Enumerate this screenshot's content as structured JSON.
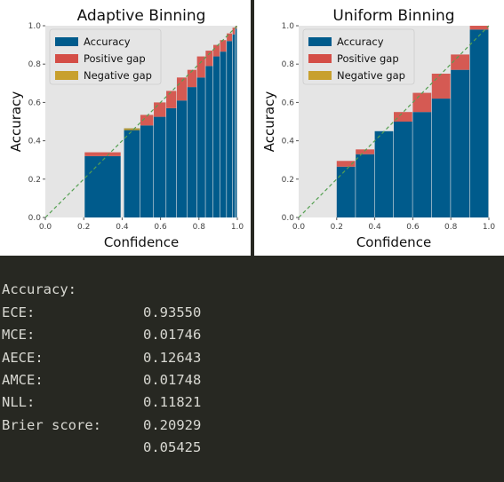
{
  "chart_data": [
    {
      "type": "bar",
      "title": "Adaptive Binning",
      "xlabel": "Confidence",
      "ylabel": "Accuracy",
      "xlim": [
        0,
        1
      ],
      "ylim": [
        0,
        1
      ],
      "xticks": [
        "0.0",
        "0.2",
        "0.4",
        "0.6",
        "0.8",
        "1.0"
      ],
      "yticks": [
        "0.0",
        "0.2",
        "0.4",
        "0.6",
        "0.8",
        "1.0"
      ],
      "grid": false,
      "diagonal_reference": true,
      "legend": {
        "position": "top-left",
        "entries": [
          "Accuracy",
          "Positive gap",
          "Negative gap"
        ]
      },
      "bins": [
        {
          "x0": 0.205,
          "x1": 0.395,
          "accuracy": 0.32,
          "confidence": 0.34
        },
        {
          "x0": 0.41,
          "x1": 0.495,
          "accuracy": 0.465,
          "confidence": 0.455
        },
        {
          "x0": 0.495,
          "x1": 0.565,
          "accuracy": 0.48,
          "confidence": 0.535
        },
        {
          "x0": 0.565,
          "x1": 0.63,
          "accuracy": 0.525,
          "confidence": 0.6
        },
        {
          "x0": 0.63,
          "x1": 0.685,
          "accuracy": 0.57,
          "confidence": 0.66
        },
        {
          "x0": 0.685,
          "x1": 0.74,
          "accuracy": 0.61,
          "confidence": 0.73
        },
        {
          "x0": 0.74,
          "x1": 0.79,
          "accuracy": 0.68,
          "confidence": 0.77
        },
        {
          "x0": 0.79,
          "x1": 0.835,
          "accuracy": 0.73,
          "confidence": 0.84
        },
        {
          "x0": 0.835,
          "x1": 0.875,
          "accuracy": 0.79,
          "confidence": 0.87
        },
        {
          "x0": 0.875,
          "x1": 0.91,
          "accuracy": 0.84,
          "confidence": 0.9
        },
        {
          "x0": 0.91,
          "x1": 0.945,
          "accuracy": 0.865,
          "confidence": 0.925
        },
        {
          "x0": 0.945,
          "x1": 0.975,
          "accuracy": 0.92,
          "confidence": 0.96
        },
        {
          "x0": 0.975,
          "x1": 0.99,
          "accuracy": 0.955,
          "confidence": 0.99
        },
        {
          "x0": 0.99,
          "x1": 1.0,
          "accuracy": 0.985,
          "confidence": 1.0
        }
      ]
    },
    {
      "type": "bar",
      "title": "Uniform Binning",
      "xlabel": "Confidence",
      "ylabel": "Accuracy",
      "xlim": [
        0,
        1
      ],
      "ylim": [
        0,
        1
      ],
      "xticks": [
        "0.0",
        "0.2",
        "0.4",
        "0.6",
        "0.8",
        "1.0"
      ],
      "yticks": [
        "0.0",
        "0.2",
        "0.4",
        "0.6",
        "0.8",
        "1.0"
      ],
      "grid": false,
      "diagonal_reference": true,
      "legend": {
        "position": "top-left",
        "entries": [
          "Accuracy",
          "Positive gap",
          "Negative gap"
        ]
      },
      "bins": [
        {
          "x0": 0.2,
          "x1": 0.3,
          "accuracy": 0.265,
          "confidence": 0.295
        },
        {
          "x0": 0.3,
          "x1": 0.4,
          "accuracy": 0.33,
          "confidence": 0.355
        },
        {
          "x0": 0.4,
          "x1": 0.5,
          "accuracy": 0.45,
          "confidence": 0.45
        },
        {
          "x0": 0.5,
          "x1": 0.6,
          "accuracy": 0.5,
          "confidence": 0.55
        },
        {
          "x0": 0.6,
          "x1": 0.7,
          "accuracy": 0.55,
          "confidence": 0.65
        },
        {
          "x0": 0.7,
          "x1": 0.8,
          "accuracy": 0.62,
          "confidence": 0.75
        },
        {
          "x0": 0.8,
          "x1": 0.9,
          "accuracy": 0.77,
          "confidence": 0.85
        },
        {
          "x0": 0.9,
          "x1": 1.0,
          "accuracy": 0.98,
          "confidence": 1.0
        }
      ]
    }
  ],
  "colors": {
    "accuracy": "#005b8c",
    "positive_gap": "#d44e47",
    "negative_gap": "#c8a02e",
    "diagonal": "#55a052",
    "plot_background": "#e5e5e5"
  },
  "metrics": [
    {
      "label": "Accuracy:",
      "value": "0.93550"
    },
    {
      "label": "ECE:",
      "value": "0.01746"
    },
    {
      "label": "MCE:",
      "value": "0.12643"
    },
    {
      "label": "AECE:",
      "value": "0.01748"
    },
    {
      "label": "AMCE:",
      "value": "0.11821"
    },
    {
      "label": "NLL:",
      "value": "0.20929"
    },
    {
      "label": "Brier score:",
      "value": "0.05425"
    }
  ]
}
